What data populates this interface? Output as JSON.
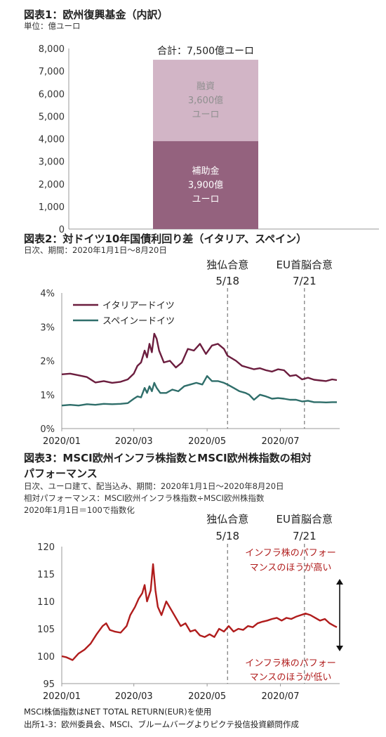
{
  "colors": {
    "loan": "#d2b5c6",
    "grant": "#94627e",
    "italy": "#6b1d3e",
    "spain": "#2f6e6a",
    "relative": "#b01c1c",
    "annotation_red": "#b01c1c",
    "dashed": "#777777",
    "axis": "#999999"
  },
  "chart_data": [
    {
      "type": "bar",
      "title": "図表1：欧州復興基金（内訳）",
      "subtitle": "単位：億ユーロ",
      "stacked": true,
      "ylim": [
        0,
        8000
      ],
      "yticks": [
        "0",
        "1,000",
        "2,000",
        "3,000",
        "4,000",
        "5,000",
        "6,000",
        "7,000",
        "8,000"
      ],
      "total_label": "合計：7,500億ユーロ",
      "series": [
        {
          "name": "補助金",
          "value": 3900,
          "label_lines": [
            "補助金",
            "3,900億",
            "ユーロ"
          ]
        },
        {
          "name": "融資",
          "value": 3600,
          "label_lines": [
            "融資",
            "3,600億",
            "ユーロ"
          ]
        }
      ]
    },
    {
      "type": "line",
      "title": "図表2：対ドイツ10年国債利回り差（イタリア、スペイン）",
      "subtitle": "日次、期間：2020年1月1日～8月20日",
      "ylim": [
        0,
        4
      ],
      "yticks": [
        "0%",
        "1%",
        "2%",
        "3%",
        "4%"
      ],
      "xticks": [
        "2020/01",
        "2020/03",
        "2020/05",
        "2020/07"
      ],
      "events": [
        {
          "label": "独仏合意",
          "date": "5/18"
        },
        {
          "label": "EU首脳合意",
          "date": "7/21"
        }
      ],
      "series": [
        {
          "name": "イタリアードイツ",
          "points": [
            [
              1,
              1.6
            ],
            [
              8,
              1.62
            ],
            [
              15,
              1.57
            ],
            [
              22,
              1.52
            ],
            [
              29,
              1.36
            ],
            [
              36,
              1.4
            ],
            [
              43,
              1.35
            ],
            [
              50,
              1.38
            ],
            [
              56,
              1.45
            ],
            [
              61,
              1.62
            ],
            [
              64,
              1.85
            ],
            [
              67,
              1.95
            ],
            [
              70,
              2.3
            ],
            [
              72,
              2.1
            ],
            [
              74,
              2.5
            ],
            [
              76,
              2.25
            ],
            [
              78,
              2.8
            ],
            [
              80,
              2.65
            ],
            [
              82,
              2.3
            ],
            [
              86,
              1.95
            ],
            [
              91,
              2.0
            ],
            [
              96,
              1.8
            ],
            [
              101,
              1.95
            ],
            [
              106,
              2.35
            ],
            [
              111,
              2.3
            ],
            [
              116,
              2.5
            ],
            [
              121,
              2.2
            ],
            [
              126,
              2.45
            ],
            [
              131,
              2.5
            ],
            [
              136,
              2.35
            ],
            [
              139,
              2.15
            ],
            [
              146,
              2.0
            ],
            [
              151,
              1.85
            ],
            [
              156,
              1.8
            ],
            [
              161,
              1.75
            ],
            [
              166,
              1.78
            ],
            [
              171,
              1.72
            ],
            [
              176,
              1.68
            ],
            [
              181,
              1.75
            ],
            [
              186,
              1.72
            ],
            [
              191,
              1.55
            ],
            [
              196,
              1.58
            ],
            [
              201,
              1.45
            ],
            [
              206,
              1.5
            ],
            [
              211,
              1.44
            ],
            [
              216,
              1.42
            ],
            [
              221,
              1.4
            ],
            [
              226,
              1.45
            ],
            [
              230,
              1.43
            ]
          ]
        },
        {
          "name": "スペインードイツ",
          "points": [
            [
              1,
              0.68
            ],
            [
              8,
              0.7
            ],
            [
              15,
              0.68
            ],
            [
              22,
              0.72
            ],
            [
              29,
              0.7
            ],
            [
              36,
              0.73
            ],
            [
              43,
              0.72
            ],
            [
              50,
              0.73
            ],
            [
              56,
              0.75
            ],
            [
              61,
              0.88
            ],
            [
              64,
              0.95
            ],
            [
              67,
              0.92
            ],
            [
              70,
              1.2
            ],
            [
              72,
              1.05
            ],
            [
              74,
              1.25
            ],
            [
              76,
              1.1
            ],
            [
              78,
              1.35
            ],
            [
              80,
              1.2
            ],
            [
              83,
              1.05
            ],
            [
              88,
              1.05
            ],
            [
              93,
              1.15
            ],
            [
              98,
              1.1
            ],
            [
              103,
              1.25
            ],
            [
              108,
              1.3
            ],
            [
              113,
              1.35
            ],
            [
              118,
              1.3
            ],
            [
              122,
              1.55
            ],
            [
              126,
              1.4
            ],
            [
              131,
              1.4
            ],
            [
              136,
              1.35
            ],
            [
              139,
              1.3
            ],
            [
              144,
              1.2
            ],
            [
              149,
              1.1
            ],
            [
              154,
              1.05
            ],
            [
              157,
              1.0
            ],
            [
              161,
              0.85
            ],
            [
              166,
              1.0
            ],
            [
              171,
              0.95
            ],
            [
              176,
              0.88
            ],
            [
              181,
              0.9
            ],
            [
              186,
              0.88
            ],
            [
              191,
              0.85
            ],
            [
              196,
              0.85
            ],
            [
              201,
              0.8
            ],
            [
              206,
              0.82
            ],
            [
              211,
              0.78
            ],
            [
              216,
              0.78
            ],
            [
              221,
              0.77
            ],
            [
              226,
              0.78
            ],
            [
              230,
              0.78
            ]
          ]
        }
      ]
    },
    {
      "type": "line",
      "title_lines": [
        "図表3：MSCI欧州インフラ株指数とMSCI欧州株指数の相対",
        "パフォーマンス"
      ],
      "subtitle_lines": [
        "日次、ユーロ建て、配当込み、期間：2020年1月1日～2020年8月20日",
        "相対パフォーマンス：MSCI欧州インフラ株指数÷MSCI欧州株指数",
        "2020年1月1日＝100で指数化"
      ],
      "ylim": [
        95,
        120
      ],
      "yticks": [
        "95",
        "100",
        "105",
        "110",
        "115",
        "120"
      ],
      "xticks": [
        "2020/01",
        "2020/03",
        "2020/05",
        "2020/07"
      ],
      "events": [
        {
          "label": "独仏合意",
          "date": "5/18"
        },
        {
          "label": "EU首脳合意",
          "date": "7/21"
        }
      ],
      "annotations": {
        "high": [
          "インフラ株のパフォー",
          "マンスのほうが高い"
        ],
        "low": [
          "インフラ株のパフォー",
          "マンスのほうが低い"
        ]
      },
      "series": [
        {
          "name": "相対パフォーマンス",
          "points": [
            [
              1,
              100
            ],
            [
              5,
              99.8
            ],
            [
              10,
              99.3
            ],
            [
              15,
              100.5
            ],
            [
              20,
              101.2
            ],
            [
              25,
              102.3
            ],
            [
              30,
              104.0
            ],
            [
              35,
              105.5
            ],
            [
              38,
              106.0
            ],
            [
              41,
              104.8
            ],
            [
              45,
              104.5
            ],
            [
              50,
              104.3
            ],
            [
              55,
              105.5
            ],
            [
              58,
              107.5
            ],
            [
              62,
              109.0
            ],
            [
              65,
              110.5
            ],
            [
              68,
              111.5
            ],
            [
              70,
              113.0
            ],
            [
              72,
              110.0
            ],
            [
              75,
              112.0
            ],
            [
              77,
              116.8
            ],
            [
              79,
              112.0
            ],
            [
              81,
              109.0
            ],
            [
              84,
              107.5
            ],
            [
              88,
              110.0
            ],
            [
              92,
              108.5
            ],
            [
              96,
              107.0
            ],
            [
              100,
              105.5
            ],
            [
              104,
              106.0
            ],
            [
              108,
              104.5
            ],
            [
              112,
              104.8
            ],
            [
              116,
              103.8
            ],
            [
              120,
              103.5
            ],
            [
              124,
              104.0
            ],
            [
              128,
              103.5
            ],
            [
              132,
              105.0
            ],
            [
              136,
              104.5
            ],
            [
              140,
              105.5
            ],
            [
              144,
              104.5
            ],
            [
              148,
              105.0
            ],
            [
              152,
              104.8
            ],
            [
              156,
              105.5
            ],
            [
              160,
              105.3
            ],
            [
              164,
              106.0
            ],
            [
              168,
              106.3
            ],
            [
              172,
              106.5
            ],
            [
              176,
              106.8
            ],
            [
              180,
              107.0
            ],
            [
              184,
              106.5
            ],
            [
              188,
              107.0
            ],
            [
              192,
              106.8
            ],
            [
              196,
              107.2
            ],
            [
              200,
              107.5
            ],
            [
              204,
              107.8
            ],
            [
              208,
              107.5
            ],
            [
              212,
              107.0
            ],
            [
              216,
              106.5
            ],
            [
              220,
              106.8
            ],
            [
              224,
              106.0
            ],
            [
              228,
              105.5
            ],
            [
              230,
              105.3
            ]
          ]
        }
      ]
    }
  ],
  "footnotes": [
    "MSCI株価指数はNET TOTAL RETURN(EUR)を使用",
    "出所1-3：欧州委員会、MSCI、ブルームバーグよりピクテ投信投資顧問作成"
  ]
}
